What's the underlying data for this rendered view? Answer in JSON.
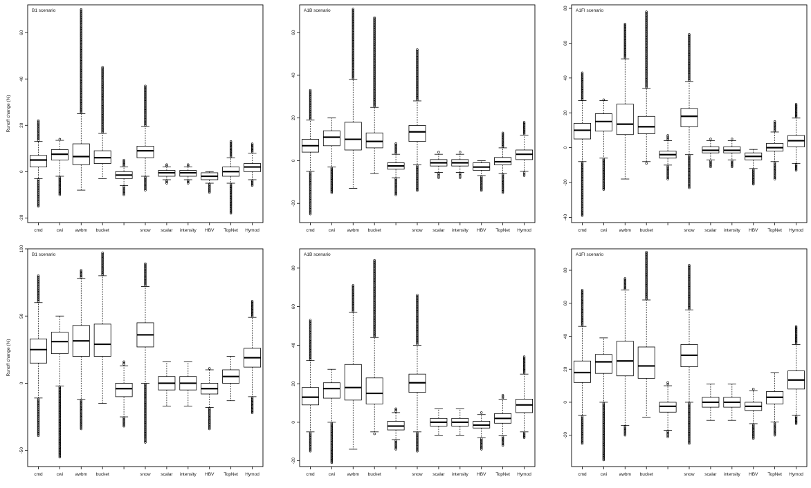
{
  "categories": [
    "cmd",
    "cwi",
    "awbm",
    "bucket",
    "",
    "snow",
    "scalar",
    "intensity",
    "HBV",
    "TopNet",
    "Hymod"
  ],
  "chart_data": [
    {
      "type": "box",
      "title": "B1 scenario",
      "ylabel": "Runoff change (%)",
      "ylim": [
        -22,
        72
      ],
      "yticks": [
        -20,
        0,
        20,
        40,
        60
      ],
      "boxes": [
        {
          "q1": 2,
          "median": 5,
          "q3": 7,
          "lo": -3,
          "hi": 13,
          "omin": -15,
          "omax": 22
        },
        {
          "q1": 5,
          "median": 7.5,
          "q3": 9.5,
          "lo": -2,
          "hi": 13.5,
          "omin": -10,
          "omax": 14
        },
        {
          "q1": 3,
          "median": 6.5,
          "q3": 12,
          "lo": -8,
          "hi": 25,
          "omin": -8,
          "omax": 70
        },
        {
          "q1": 3.5,
          "median": 6,
          "q3": 9,
          "lo": -3,
          "hi": 16.5,
          "omin": -3,
          "omax": 45
        },
        {
          "q1": -3,
          "median": -1.5,
          "q3": 0,
          "lo": -6,
          "hi": 2,
          "omin": -10,
          "omax": 5
        },
        {
          "q1": 6,
          "median": 9,
          "q3": 11,
          "lo": -2,
          "hi": 19.5,
          "omin": -8,
          "omax": 37
        },
        {
          "q1": -2,
          "median": -0.5,
          "q3": 0.5,
          "lo": -3.5,
          "hi": 2,
          "omin": -5,
          "omax": 3
        },
        {
          "q1": -2,
          "median": -0.5,
          "q3": 0.5,
          "lo": -3.5,
          "hi": 2,
          "omin": -5,
          "omax": 3
        },
        {
          "q1": -3.5,
          "median": -2,
          "q3": -0.5,
          "lo": -5,
          "hi": 0,
          "omin": -9,
          "omax": 0
        },
        {
          "q1": -2,
          "median": 0,
          "q3": 2,
          "lo": -5,
          "hi": 6,
          "omin": -18,
          "omax": 13
        },
        {
          "q1": 0,
          "median": 2,
          "q3": 3.5,
          "lo": -3.5,
          "hi": 8,
          "omin": -6,
          "omax": 12
        }
      ]
    },
    {
      "type": "box",
      "title": "A1B scenario",
      "ylabel": "",
      "ylim": [
        -29,
        73
      ],
      "yticks": [
        -20,
        0,
        20,
        40,
        60
      ],
      "boxes": [
        {
          "q1": 4,
          "median": 7,
          "q3": 10,
          "lo": -5,
          "hi": 19,
          "omin": -25,
          "omax": 33
        },
        {
          "q1": 7,
          "median": 11,
          "q3": 14,
          "lo": -3,
          "hi": 20,
          "omin": -15,
          "omax": 20
        },
        {
          "q1": 5,
          "median": 10,
          "q3": 18,
          "lo": -13,
          "hi": 38,
          "omin": -13,
          "omax": 71
        },
        {
          "q1": 6,
          "median": 9,
          "q3": 13,
          "lo": -6,
          "hi": 25,
          "omin": -6,
          "omax": 67
        },
        {
          "q1": -4,
          "median": -2.5,
          "q3": -1,
          "lo": -8,
          "hi": 3,
          "omin": -16,
          "omax": 8
        },
        {
          "q1": 9,
          "median": 13.5,
          "q3": 16.5,
          "lo": -2,
          "hi": 28,
          "omin": -14,
          "omax": 52
        },
        {
          "q1": -2.5,
          "median": -1,
          "q3": 0.5,
          "lo": -5.5,
          "hi": 3,
          "omin": -8,
          "omax": 4
        },
        {
          "q1": -2.5,
          "median": -1,
          "q3": 0.5,
          "lo": -5.5,
          "hi": 3,
          "omin": -8,
          "omax": 4
        },
        {
          "q1": -4.5,
          "median": -3,
          "q3": -1,
          "lo": -7,
          "hi": 0,
          "omin": -14,
          "omax": 0
        },
        {
          "q1": -2,
          "median": -0.5,
          "q3": 1.5,
          "lo": -6,
          "hi": 6,
          "omin": -15,
          "omax": 13
        },
        {
          "q1": 0.5,
          "median": 3,
          "q3": 5,
          "lo": -5,
          "hi": 12,
          "omin": -7,
          "omax": 18
        }
      ]
    },
    {
      "type": "box",
      "title": "A1FI scenario",
      "ylabel": "",
      "ylim": [
        -43,
        82
      ],
      "yticks": [
        -40,
        -20,
        0,
        20,
        40,
        60,
        80
      ],
      "boxes": [
        {
          "q1": 5,
          "median": 10,
          "q3": 14,
          "lo": -8,
          "hi": 27,
          "omin": -39,
          "omax": 43
        },
        {
          "q1": 9.5,
          "median": 15,
          "q3": 19.5,
          "lo": -6,
          "hi": 27,
          "omin": -24,
          "omax": 27.5
        },
        {
          "q1": 7.5,
          "median": 13.5,
          "q3": 25,
          "lo": -18,
          "hi": 51,
          "omin": -18,
          "omax": 71
        },
        {
          "q1": 8,
          "median": 12,
          "q3": 18,
          "lo": -8,
          "hi": 34,
          "omin": -9,
          "omax": 78
        },
        {
          "q1": -6,
          "median": -4,
          "q3": -2,
          "lo": -10,
          "hi": 4,
          "omin": -18,
          "omax": 7
        },
        {
          "q1": 12,
          "median": 18,
          "q3": 22.5,
          "lo": -4,
          "hi": 38,
          "omin": -23,
          "omax": 65
        },
        {
          "q1": -3,
          "median": -1.5,
          "q3": 0.5,
          "lo": -7,
          "hi": 4,
          "omin": -11,
          "omax": 5
        },
        {
          "q1": -3,
          "median": -1.5,
          "q3": 0.5,
          "lo": -7,
          "hi": 4,
          "omin": -11,
          "omax": 5
        },
        {
          "q1": -7,
          "median": -5,
          "q3": -3,
          "lo": -12,
          "hi": -1,
          "omin": -21,
          "omax": -1
        },
        {
          "q1": -2,
          "median": 0,
          "q3": 2.5,
          "lo": -8,
          "hi": 9,
          "omin": -18,
          "omax": 15
        },
        {
          "q1": 0.5,
          "median": 4,
          "q3": 7,
          "lo": -9,
          "hi": 17,
          "omin": -13,
          "omax": 25
        }
      ]
    },
    {
      "type": "box",
      "title": "B1 scenario",
      "ylabel": "Runoff change (%)",
      "ylim": [
        -62,
        100
      ],
      "yticks": [
        -50,
        0,
        50,
        100
      ],
      "boxes": [
        {
          "q1": 15,
          "median": 25,
          "q3": 33,
          "lo": -11,
          "hi": 60,
          "omin": -39,
          "omax": 80
        },
        {
          "q1": 22,
          "median": 31,
          "q3": 38,
          "lo": -2,
          "hi": 50,
          "omin": -55,
          "omax": 50
        },
        {
          "q1": 20,
          "median": 31.5,
          "q3": 43,
          "lo": -12,
          "hi": 78,
          "omin": -34,
          "omax": 84
        },
        {
          "q1": 20,
          "median": 29,
          "q3": 44,
          "lo": -15,
          "hi": 80,
          "omin": -15,
          "omax": 97
        },
        {
          "q1": -10,
          "median": -4,
          "q3": 0,
          "lo": -25,
          "hi": 13,
          "omin": -32,
          "omax": 16
        },
        {
          "q1": 27,
          "median": 36,
          "q3": 45,
          "lo": 0,
          "hi": 72,
          "omin": -44,
          "omax": 89
        },
        {
          "q1": -5,
          "median": 0,
          "q3": 5,
          "lo": -17,
          "hi": 16,
          "omin": -17,
          "omax": 16
        },
        {
          "q1": -5,
          "median": 0,
          "q3": 5,
          "lo": -17,
          "hi": 16,
          "omin": -17,
          "omax": 16
        },
        {
          "q1": -8,
          "median": -4,
          "q3": 0,
          "lo": -18,
          "hi": 10,
          "omin": -34,
          "omax": 11
        },
        {
          "q1": 0,
          "median": 5,
          "q3": 10,
          "lo": -13,
          "hi": 20,
          "omin": -13,
          "omax": 20
        },
        {
          "q1": 12,
          "median": 19,
          "q3": 26,
          "lo": -10,
          "hi": 49,
          "omin": -22,
          "omax": 61
        }
      ]
    },
    {
      "type": "box",
      "title": "A1B scenario",
      "ylabel": "",
      "ylim": [
        -23,
        90
      ],
      "yticks": [
        -20,
        0,
        20,
        40,
        60,
        80
      ],
      "boxes": [
        {
          "q1": 9,
          "median": 13,
          "q3": 18,
          "lo": -5,
          "hi": 32,
          "omin": -15,
          "omax": 53
        },
        {
          "q1": 12.5,
          "median": 17.5,
          "q3": 20.5,
          "lo": 0,
          "hi": 27.5,
          "omin": -21,
          "omax": 27.5
        },
        {
          "q1": 11.5,
          "median": 18,
          "q3": 30,
          "lo": -14,
          "hi": 57,
          "omin": -14,
          "omax": 71
        },
        {
          "q1": 9.5,
          "median": 15,
          "q3": 23,
          "lo": -5,
          "hi": 44,
          "omin": -6,
          "omax": 84
        },
        {
          "q1": -4,
          "median": -2,
          "q3": 0.5,
          "lo": -9,
          "hi": 5,
          "omin": -14,
          "omax": 7
        },
        {
          "q1": 15.5,
          "median": 20.5,
          "q3": 25,
          "lo": -5,
          "hi": 40,
          "omin": -15,
          "omax": 66
        },
        {
          "q1": -2,
          "median": 0,
          "q3": 2,
          "lo": -7,
          "hi": 7,
          "omin": -7,
          "omax": 7
        },
        {
          "q1": -2,
          "median": 0,
          "q3": 2,
          "lo": -7,
          "hi": 7,
          "omin": -7,
          "omax": 7
        },
        {
          "q1": -3,
          "median": -1.5,
          "q3": 0.5,
          "lo": -8,
          "hi": 4,
          "omin": -14,
          "omax": 5
        },
        {
          "q1": -0.5,
          "median": 2,
          "q3": 4.5,
          "lo": -7,
          "hi": 12,
          "omin": -12,
          "omax": 14
        },
        {
          "q1": 5,
          "median": 9,
          "q3": 12,
          "lo": -5,
          "hi": 25,
          "omin": -8,
          "omax": 34
        }
      ]
    },
    {
      "type": "box",
      "title": "A1FI scenario",
      "ylabel": "",
      "ylim": [
        -39,
        93
      ],
      "yticks": [
        -20,
        0,
        20,
        40,
        60,
        80
      ],
      "boxes": [
        {
          "q1": 12,
          "median": 18,
          "q3": 25,
          "lo": -8,
          "hi": 46,
          "omin": -25,
          "omax": 68
        },
        {
          "q1": 17.5,
          "median": 24.5,
          "q3": 29,
          "lo": 0,
          "hi": 39,
          "omin": -35,
          "omax": 39
        },
        {
          "q1": 16,
          "median": 25,
          "q3": 37,
          "lo": -14,
          "hi": 68,
          "omin": -20,
          "omax": 75
        },
        {
          "q1": 14.5,
          "median": 22,
          "q3": 33.5,
          "lo": -9,
          "hi": 62,
          "omin": -9,
          "omax": 91
        },
        {
          "q1": -6,
          "median": -2.5,
          "q3": 0,
          "lo": -17,
          "hi": 10,
          "omin": -21,
          "omax": 12
        },
        {
          "q1": 21.5,
          "median": 28.5,
          "q3": 35,
          "lo": 0,
          "hi": 56,
          "omin": -25,
          "omax": 83
        },
        {
          "q1": -3,
          "median": 0,
          "q3": 3,
          "lo": -11,
          "hi": 11,
          "omin": -11,
          "omax": 11
        },
        {
          "q1": -3,
          "median": 0,
          "q3": 3,
          "lo": -11,
          "hi": 11,
          "omin": -11,
          "omax": 11
        },
        {
          "q1": -5,
          "median": -2.5,
          "q3": 0,
          "lo": -13,
          "hi": 7,
          "omin": -22,
          "omax": 8
        },
        {
          "q1": -1,
          "median": 3,
          "q3": 6.5,
          "lo": -12,
          "hi": 18,
          "omin": -20,
          "omax": 18
        },
        {
          "q1": 8,
          "median": 13.5,
          "q3": 19,
          "lo": -8,
          "hi": 35,
          "omin": -13,
          "omax": 46
        }
      ]
    }
  ]
}
